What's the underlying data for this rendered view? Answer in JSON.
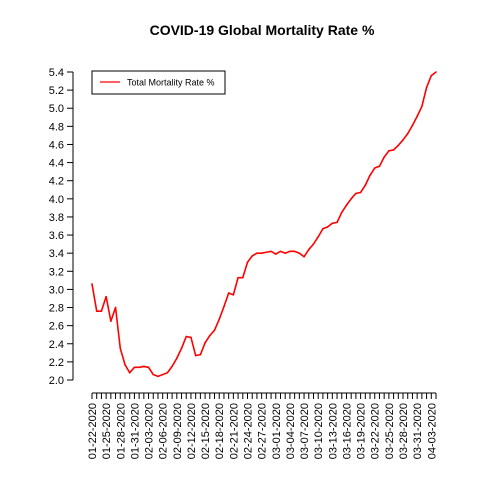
{
  "chart_data": {
    "type": "line",
    "title": "COVID-19 Global Mortality Rate %",
    "xlabel": "",
    "ylabel": "",
    "ylim": [
      2.0,
      5.4
    ],
    "yticks": [
      "2.0",
      "2.2",
      "2.4",
      "2.6",
      "2.8",
      "3.0",
      "3.2",
      "3.4",
      "3.6",
      "3.8",
      "4.0",
      "4.2",
      "4.4",
      "4.6",
      "4.8",
      "5.0",
      "5.2",
      "5.4"
    ],
    "x": [
      "01-22-2020",
      "01-23-2020",
      "01-24-2020",
      "01-25-2020",
      "01-26-2020",
      "01-27-2020",
      "01-28-2020",
      "01-29-2020",
      "01-30-2020",
      "01-31-2020",
      "02-01-2020",
      "02-02-2020",
      "02-03-2020",
      "02-04-2020",
      "02-05-2020",
      "02-06-2020",
      "02-07-2020",
      "02-08-2020",
      "02-09-2020",
      "02-10-2020",
      "02-11-2020",
      "02-12-2020",
      "02-13-2020",
      "02-14-2020",
      "02-15-2020",
      "02-16-2020",
      "02-17-2020",
      "02-18-2020",
      "02-19-2020",
      "02-20-2020",
      "02-21-2020",
      "02-22-2020",
      "02-23-2020",
      "02-24-2020",
      "02-25-2020",
      "02-26-2020",
      "02-27-2020",
      "02-28-2020",
      "02-29-2020",
      "03-01-2020",
      "03-02-2020",
      "03-03-2020",
      "03-04-2020",
      "03-05-2020",
      "03-06-2020",
      "03-07-2020",
      "03-08-2020",
      "03-09-2020",
      "03-10-2020",
      "03-11-2020",
      "03-12-2020",
      "03-13-2020",
      "03-14-2020",
      "03-15-2020",
      "03-16-2020",
      "03-17-2020",
      "03-18-2020",
      "03-19-2020",
      "03-20-2020",
      "03-21-2020",
      "03-22-2020",
      "03-23-2020",
      "03-24-2020",
      "03-25-2020",
      "03-26-2020",
      "03-27-2020",
      "03-28-2020",
      "03-29-2020",
      "03-30-2020",
      "03-31-2020",
      "04-01-2020",
      "04-02-2020",
      "04-03-2020",
      "04-04-2020"
    ],
    "xtick_labels": [
      "01-22-2020",
      "01-25-2020",
      "01-28-2020",
      "01-31-2020",
      "02-03-2020",
      "02-06-2020",
      "02-09-2020",
      "02-12-2020",
      "02-15-2020",
      "02-18-2020",
      "02-21-2020",
      "02-24-2020",
      "02-27-2020",
      "03-01-2020",
      "03-04-2020",
      "03-07-2020",
      "03-10-2020",
      "03-13-2020",
      "03-16-2020",
      "03-19-2020",
      "03-22-2020",
      "03-25-2020",
      "03-28-2020",
      "03-31-2020",
      "04-03-2020"
    ],
    "series": [
      {
        "name": "Total Mortality Rate %",
        "color": "#ff0000",
        "values": [
          3.06,
          2.76,
          2.76,
          2.92,
          2.65,
          2.8,
          2.35,
          2.17,
          2.08,
          2.14,
          2.14,
          2.15,
          2.14,
          2.06,
          2.04,
          2.06,
          2.08,
          2.15,
          2.24,
          2.35,
          2.48,
          2.47,
          2.27,
          2.28,
          2.41,
          2.49,
          2.55,
          2.67,
          2.81,
          2.96,
          2.94,
          3.13,
          3.13,
          3.3,
          3.37,
          3.4,
          3.4,
          3.41,
          3.42,
          3.39,
          3.42,
          3.4,
          3.42,
          3.42,
          3.4,
          3.36,
          3.44,
          3.5,
          3.58,
          3.67,
          3.69,
          3.73,
          3.74,
          3.85,
          3.93,
          4.0,
          4.06,
          4.07,
          4.15,
          4.26,
          4.34,
          4.36,
          4.46,
          4.53,
          4.54,
          4.59,
          4.65,
          4.72,
          4.81,
          4.91,
          5.02,
          5.23,
          5.36,
          5.4
        ]
      }
    ],
    "legend_position": "top-left",
    "grid": false
  }
}
